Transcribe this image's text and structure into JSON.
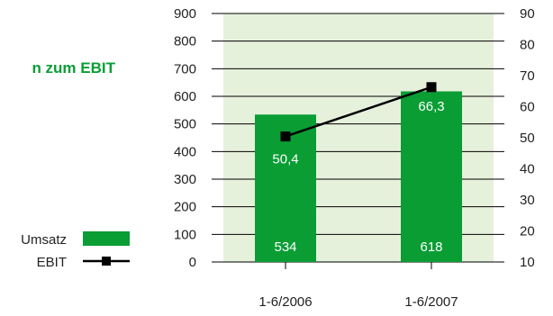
{
  "chart_data": {
    "type": "bar",
    "title": "n zum EBIT",
    "categories": [
      "1-6/2006",
      "1-6/2007"
    ],
    "series": [
      {
        "name": "Umsatz",
        "type": "bar",
        "axis": "left",
        "values": [
          534,
          618
        ],
        "labels": [
          "534",
          "618"
        ]
      },
      {
        "name": "EBIT",
        "type": "line",
        "axis": "right",
        "values": [
          50.4,
          66.3
        ],
        "labels": [
          "50,4",
          "66,3"
        ]
      }
    ],
    "y_left": {
      "min": 0,
      "max": 900,
      "step": 100
    },
    "y_right": {
      "min": 10,
      "max": 90,
      "step": 10
    },
    "grid": true,
    "legend_position": "left"
  },
  "colors": {
    "bar": "#0a9d34",
    "line": "#000000",
    "plot_bg": "#e6f1dc",
    "title": "#0a9d34",
    "grid": "#000000"
  }
}
